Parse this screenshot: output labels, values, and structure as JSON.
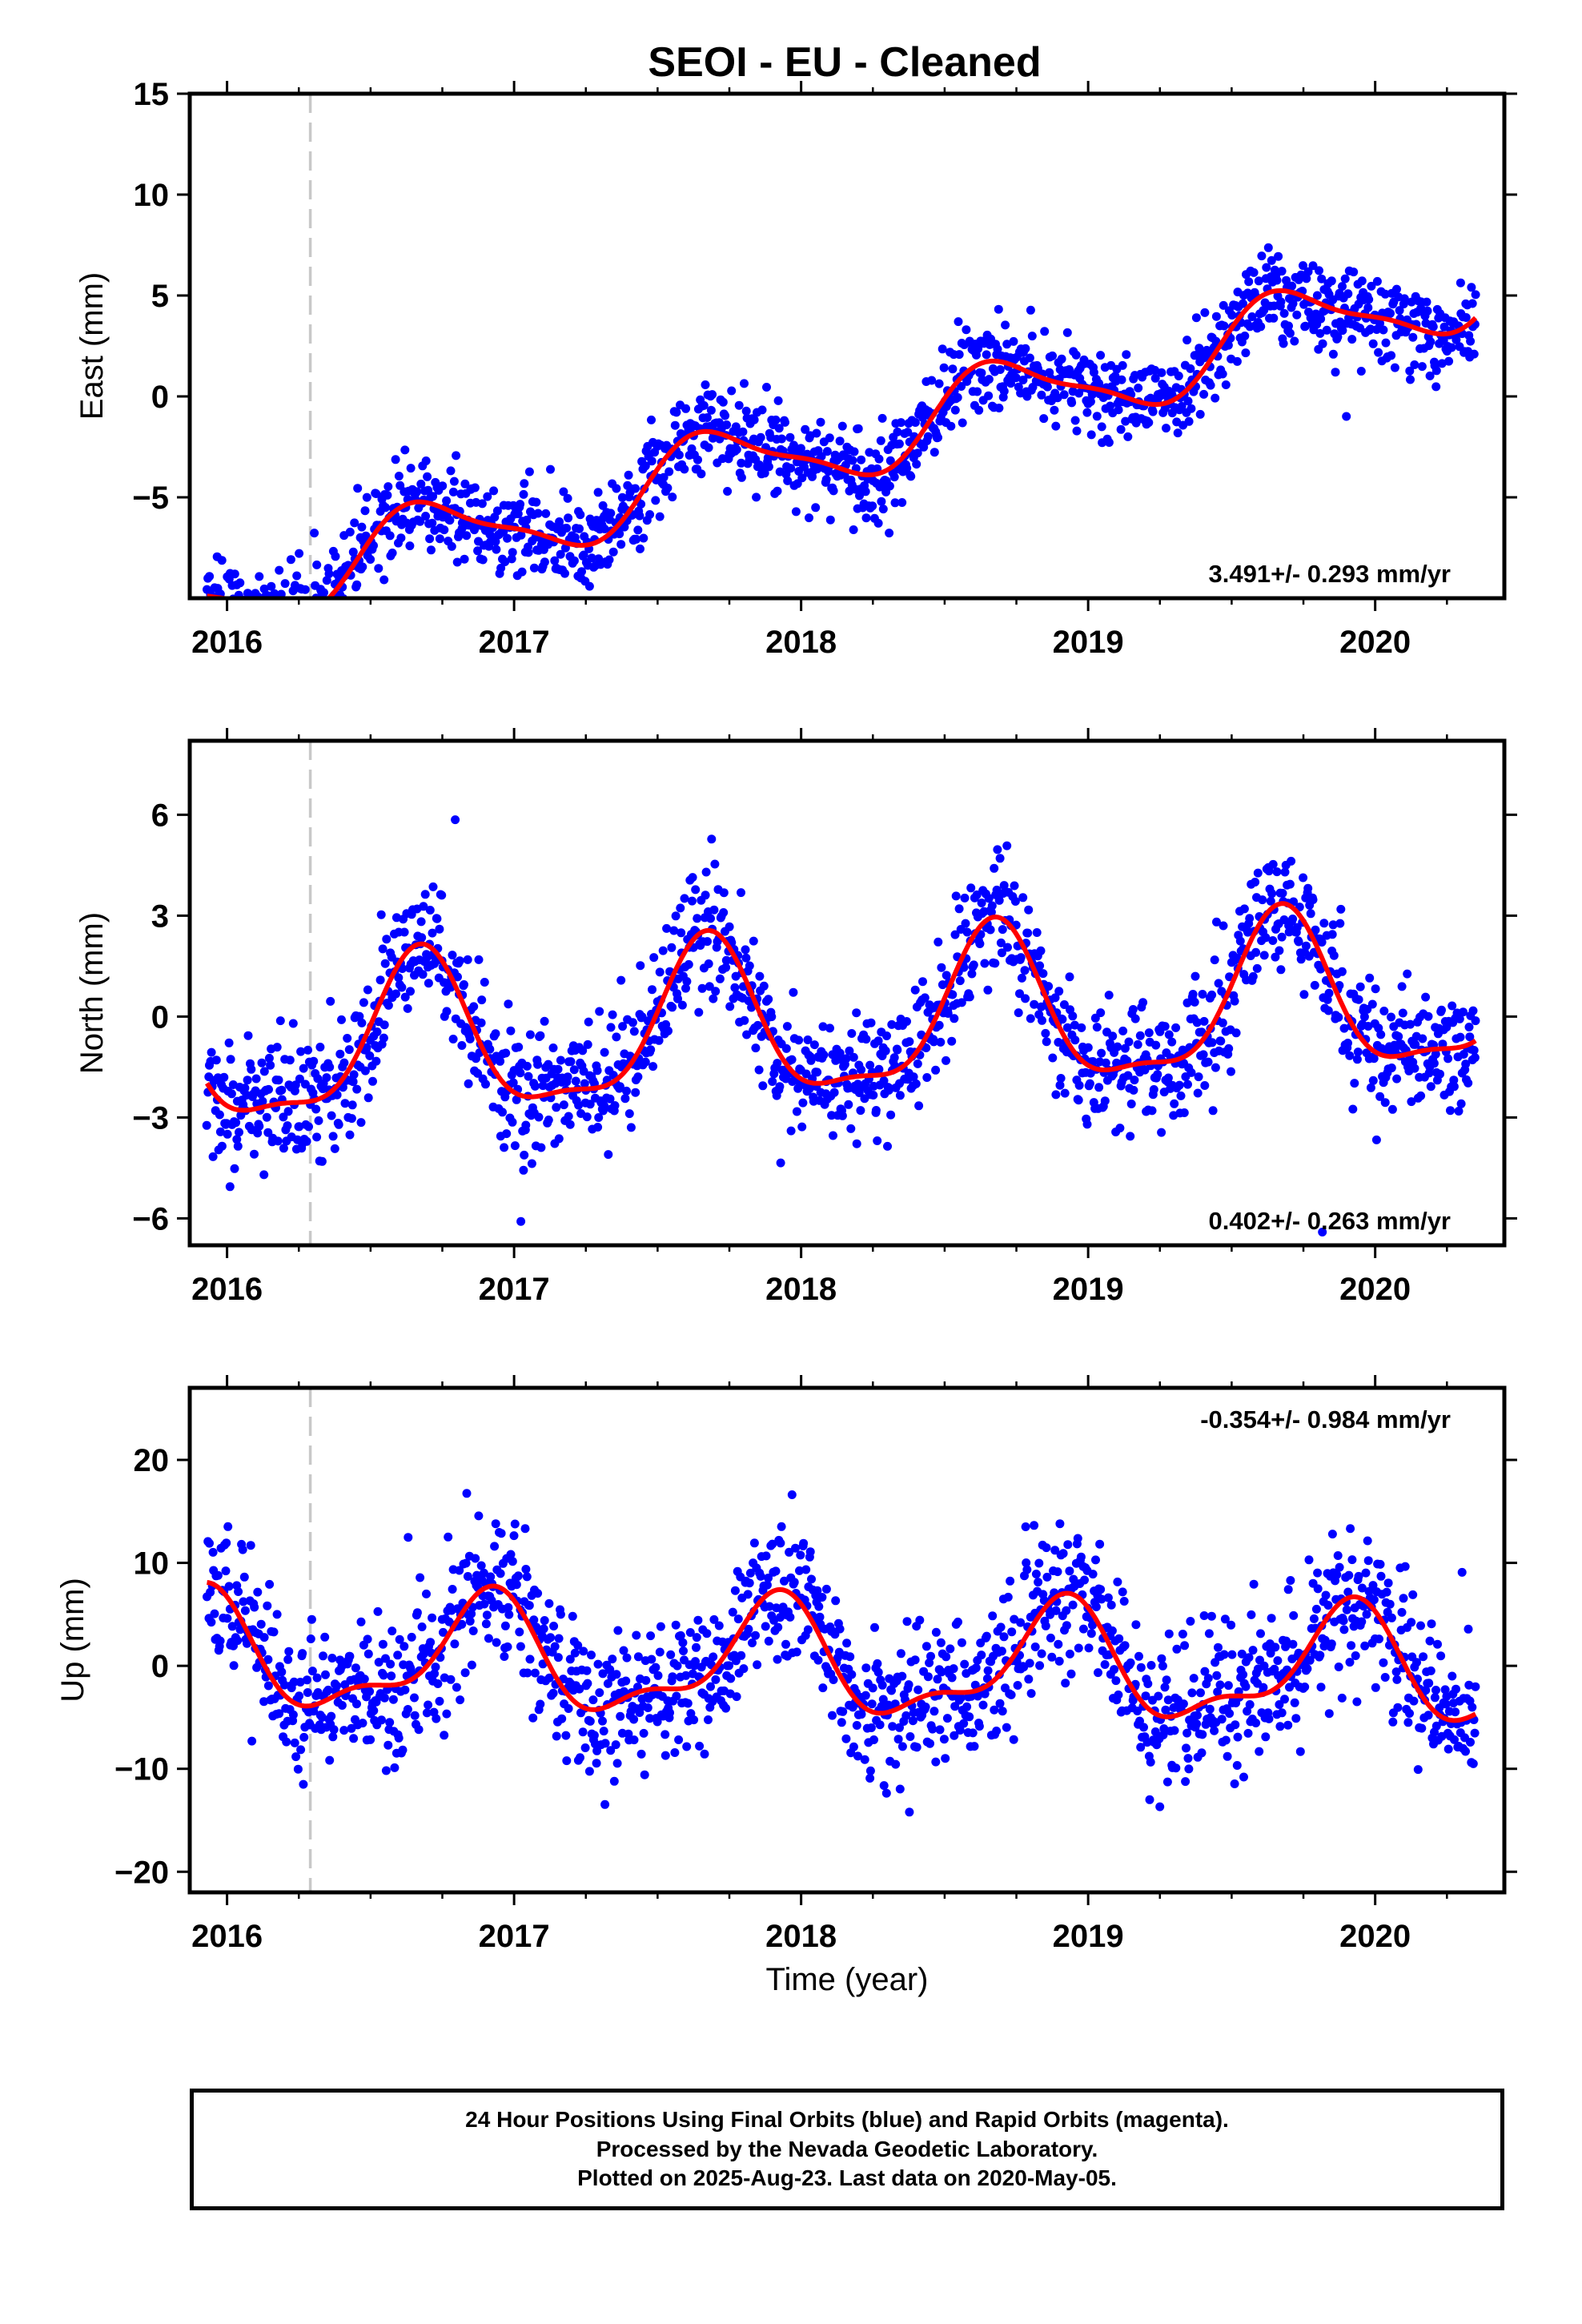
{
  "title": "SEOI  - EU - Cleaned",
  "xlabel": "Time (year)",
  "footer": {
    "line1": "24 Hour Positions Using Final Orbits (blue) and Rapid Orbits (magenta).",
    "line2": "Processed by the Nevada Geodetic Laboratory.",
    "line3": "Plotted on 2025-Aug-23. Last data on 2020-May-05."
  },
  "chart_data": [
    {
      "type": "scatter",
      "component": "East",
      "ylabel": "East (mm)",
      "rate": "3.491+/- 0.293 mm/yr",
      "rate_position": "bottom-right",
      "xlim": [
        2015.87,
        2020.45
      ],
      "ylim": [
        -10,
        15
      ],
      "xticks": [
        2016,
        2017,
        2018,
        2019,
        2020
      ],
      "yticks": [
        -5,
        0,
        5,
        10,
        15
      ],
      "equipment_change_year": 2016.29,
      "trend": {
        "slope": 3.49,
        "intercept": -2.7,
        "t0": 2018
      },
      "seasonal": {
        "a1": -1.8,
        "b1": -0.6,
        "a2": 0.45,
        "b2": 0.25
      },
      "noise_mm": 1.15,
      "seed": 11,
      "colors": {
        "points": "#0000ff",
        "fit": "#ff0000"
      }
    },
    {
      "type": "scatter",
      "component": "North",
      "ylabel": "North (mm)",
      "rate": "0.402+/- 0.263 mm/yr",
      "rate_position": "bottom-right",
      "xlim": [
        2015.87,
        2020.45
      ],
      "ylim": [
        -6.8,
        8.2
      ],
      "xticks": [
        2016,
        2017,
        2018,
        2019,
        2020
      ],
      "yticks": [
        -6,
        -3,
        0,
        3,
        6
      ],
      "equipment_change_year": 2016.29,
      "trend": {
        "slope": 0.4,
        "intercept": -0.3,
        "t0": 2018
      },
      "seasonal": {
        "a1": -2.0,
        "b1": -1.1,
        "a2": 0.55,
        "b2": -0.45
      },
      "noise_mm": 0.95,
      "seed": 23,
      "colors": {
        "points": "#0000ff",
        "fit": "#ff0000"
      }
    },
    {
      "type": "scatter",
      "component": "Up",
      "ylabel": "Up (mm)",
      "rate": "-0.354+/- 0.984 mm/yr",
      "rate_position": "top-right",
      "xlim": [
        2015.87,
        2020.45
      ],
      "ylim": [
        -22,
        27
      ],
      "xticks": [
        2016,
        2017,
        2018,
        2019,
        2020
      ],
      "yticks": [
        -20,
        -10,
        0,
        10,
        20
      ],
      "equipment_change_year": 2016.29,
      "trend": {
        "slope": -0.35,
        "intercept": 0.2,
        "t0": 2018
      },
      "seasonal": {
        "a1": -3.0,
        "b1": 4.2,
        "a2": -1.4,
        "b2": 1.6
      },
      "noise_mm": 3.6,
      "seed": 37,
      "colors": {
        "points": "#0000ff",
        "fit": "#ff0000"
      }
    }
  ]
}
